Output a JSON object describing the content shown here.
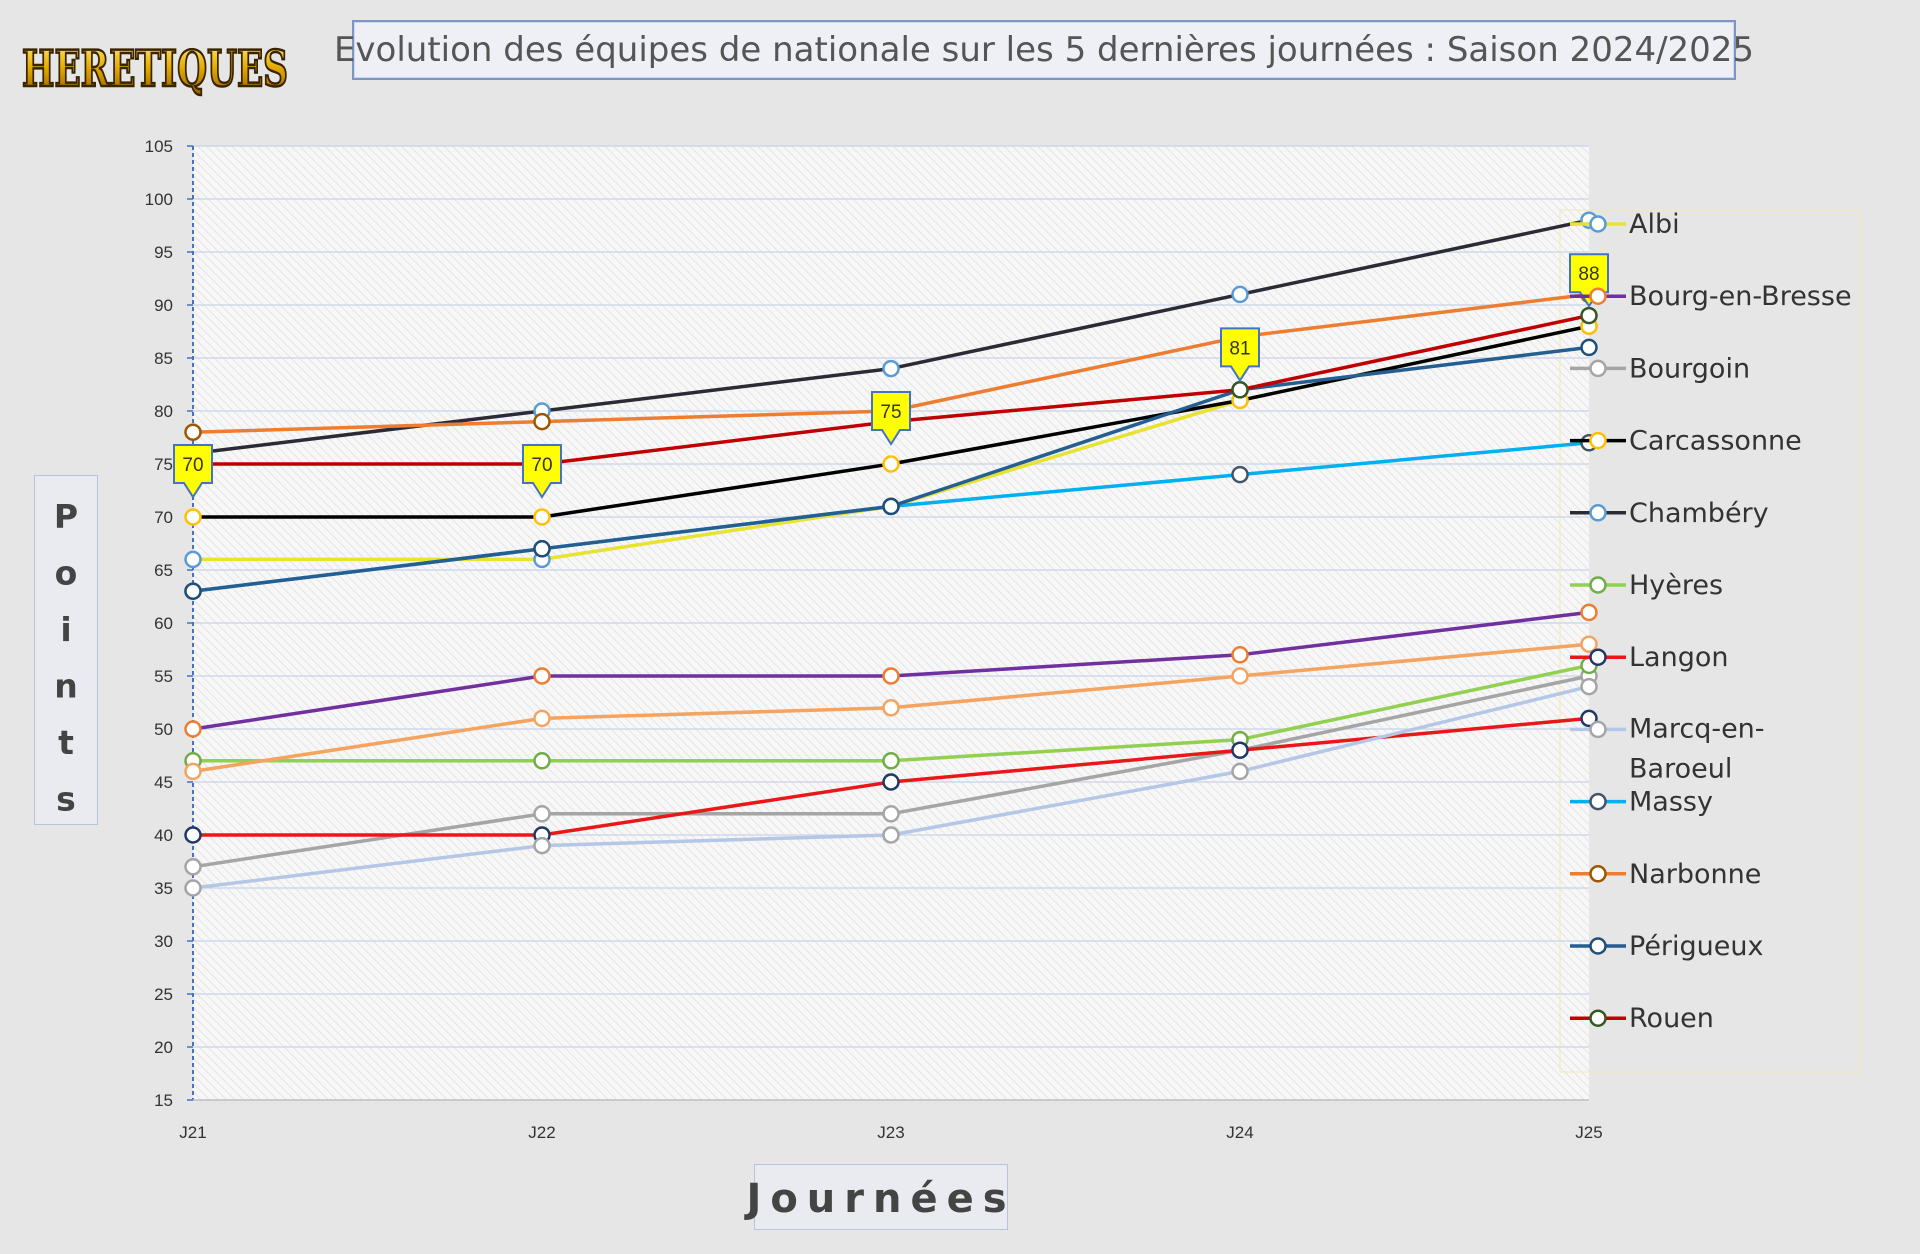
{
  "header": {
    "logo_text": "HERETIQUES",
    "title": "Evolution des équipes de nationale sur les 5 dernières journées : Saison 2024/2025"
  },
  "colors": {
    "background": "#e6e6e6",
    "plot_background": "#f6f6f6",
    "callout_fill": "#ffff00",
    "callout_border": "#4472c4"
  },
  "chart_data": {
    "type": "line",
    "title": "Evolution des équipes de nationale sur les 5 dernières journées : Saison 2024/2025",
    "xlabel": "Journées",
    "ylabel": "Points",
    "categories": [
      "J21",
      "J22",
      "J23",
      "J24",
      "J25"
    ],
    "ylim": [
      15,
      105
    ],
    "yticks": [
      15,
      20,
      25,
      30,
      35,
      40,
      45,
      50,
      55,
      60,
      65,
      70,
      75,
      80,
      85,
      90,
      95,
      100,
      105
    ],
    "grid": true,
    "legend_position": "right",
    "series": [
      {
        "name": "Albi",
        "color": "#e8e230",
        "marker": "#5b9bd5",
        "values": [
          66,
          66,
          71,
          81,
          88
        ]
      },
      {
        "name": "Bourg-en-Bresse",
        "color": "#7030a0",
        "marker": "#ed7d31",
        "values": [
          50,
          55,
          55,
          57,
          61
        ]
      },
      {
        "name": "Bourgoin",
        "color": "#a5a5a5",
        "marker": "#a5a5a5",
        "values": [
          37,
          42,
          42,
          48,
          55
        ]
      },
      {
        "name": "Carcassonne",
        "color": "#000000",
        "marker": "#ffc000",
        "values": [
          70,
          70,
          75,
          81,
          88
        ]
      },
      {
        "name": "Chambéry",
        "color": "#2b2b36",
        "marker": "#5b9bd5",
        "values": [
          76,
          80,
          84,
          91,
          98
        ]
      },
      {
        "name": "Hyères",
        "color": "#92d050",
        "marker": "#70ad47",
        "values": [
          47,
          47,
          47,
          49,
          56
        ]
      },
      {
        "name": "Langon",
        "color": "#e81818",
        "marker": "#1f3864",
        "values": [
          40,
          40,
          45,
          48,
          51
        ]
      },
      {
        "name": "Marcq-en-Baroeul",
        "color": "#b4c7e7",
        "marker": "#a5a5a5",
        "values": [
          35,
          39,
          40,
          46,
          54
        ]
      },
      {
        "name": "Massy",
        "color": "#00b0f0",
        "marker": "#44546a",
        "values": [
          63,
          67,
          71,
          74,
          77
        ]
      },
      {
        "name": "Narbonne",
        "color": "#ed7d31",
        "marker": "#9c5700",
        "values": [
          78,
          79,
          80,
          87,
          91
        ]
      },
      {
        "name": "Périgueux",
        "color": "#255e91",
        "marker": "#1f4e79",
        "values": [
          63,
          67,
          71,
          82,
          86
        ]
      },
      {
        "name": "Rouen",
        "color": "#c00000",
        "marker": "#375623",
        "values": [
          75,
          75,
          79,
          82,
          89
        ]
      },
      {
        "name": "",
        "color": "#f4a460",
        "marker": "#f4a460",
        "values": [
          46,
          51,
          52,
          55,
          58
        ]
      }
    ],
    "legend": [
      "Albi",
      "Bourg-en-Bresse",
      "Bourgoin",
      "Carcassonne",
      "Chambéry",
      "Hyères",
      "Langon",
      "Marcq-en-Baroeul",
      "Massy",
      "Narbonne",
      "Périgueux",
      "Rouen"
    ],
    "annotations": [
      {
        "category": "J21",
        "value": 70,
        "label": "70"
      },
      {
        "category": "J22",
        "value": 70,
        "label": "70"
      },
      {
        "category": "J23",
        "value": 75,
        "label": "75"
      },
      {
        "category": "J24",
        "value": 81,
        "label": "81"
      },
      {
        "category": "J25",
        "value": 88,
        "label": "88"
      }
    ]
  }
}
